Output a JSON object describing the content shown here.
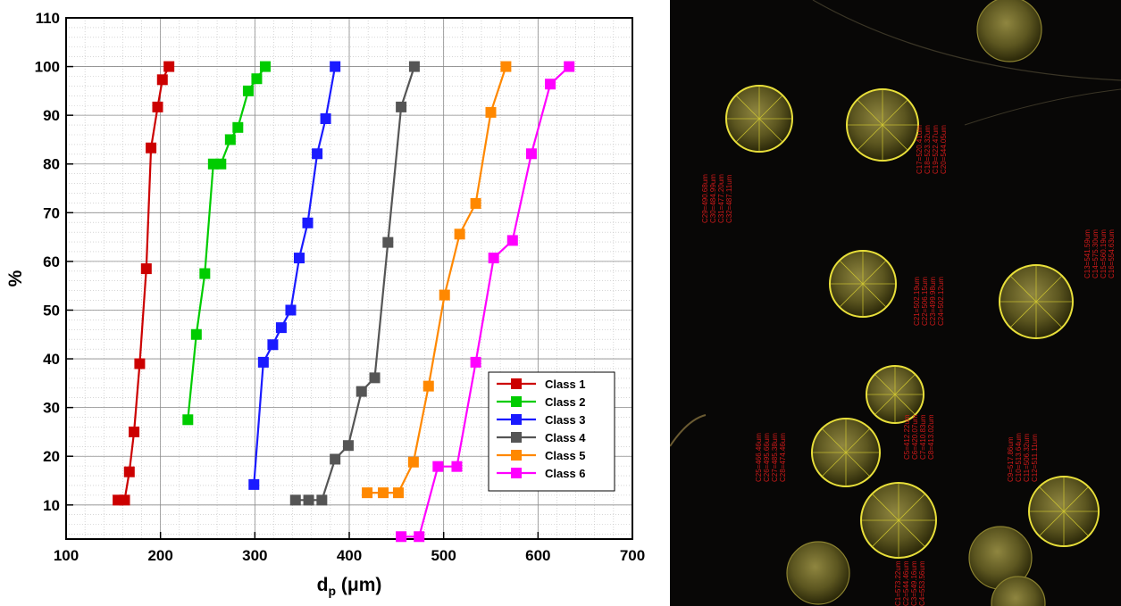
{
  "chart_data": {
    "type": "line",
    "title": "",
    "xlabel": "d",
    "xlabel_sub": "p",
    "xlabel_unit": " (μm)",
    "ylabel": "%",
    "xlim": [
      100,
      700
    ],
    "ylim": [
      3,
      110
    ],
    "x_ticks": [
      100,
      200,
      300,
      400,
      500,
      600,
      700
    ],
    "y_ticks": [
      10,
      20,
      30,
      40,
      50,
      60,
      70,
      80,
      90,
      100,
      110
    ],
    "grid": true,
    "legend_position": "bottom-right",
    "series": [
      {
        "name": "Class 1",
        "color": "#cc0000",
        "x": [
          155,
          162,
          167,
          172,
          178,
          185,
          190,
          197,
          202,
          209
        ],
        "y": [
          11,
          11,
          16.8,
          25,
          39,
          58.5,
          83.3,
          91.7,
          97.3,
          100
        ]
      },
      {
        "name": "Class 2",
        "color": "#00cc00",
        "x": [
          229,
          238,
          247,
          256,
          264,
          274,
          282,
          293,
          302,
          311
        ],
        "y": [
          27.5,
          45,
          57.5,
          80,
          80,
          85,
          87.5,
          95,
          97.5,
          100
        ]
      },
      {
        "name": "Class 3",
        "color": "#1a1aff",
        "x": [
          299,
          309,
          319,
          328,
          338,
          347,
          356,
          366,
          375,
          385
        ],
        "y": [
          14.2,
          39.3,
          42.9,
          46.4,
          50,
          60.7,
          67.9,
          82.1,
          89.3,
          100
        ]
      },
      {
        "name": "Class 4",
        "color": "#555555",
        "x": [
          343,
          357,
          371,
          385,
          399,
          413,
          427,
          441,
          455,
          469
        ],
        "y": [
          11,
          11,
          11,
          19.4,
          22.2,
          33.3,
          36.1,
          63.9,
          91.7,
          100
        ]
      },
      {
        "name": "Class 5",
        "color": "#ff8800",
        "x": [
          419,
          436,
          452,
          468,
          484,
          501,
          517,
          534,
          550,
          566
        ],
        "y": [
          12.5,
          12.5,
          12.5,
          18.8,
          34.4,
          53.1,
          65.6,
          71.9,
          90.6,
          100
        ]
      },
      {
        "name": "Class 6",
        "color": "#ff00ff",
        "x": [
          455,
          474,
          494,
          514,
          534,
          553,
          573,
          593,
          613,
          633
        ],
        "y": [
          3.5,
          3.5,
          17.9,
          17.9,
          39.3,
          60.7,
          64.3,
          82.1,
          96.4,
          100
        ]
      }
    ]
  },
  "photo": {
    "annotations": [
      {
        "lines": [
          "C29=490.68um",
          "C30=484.99um",
          "C31=477.20um",
          "C32=487.11um"
        ]
      },
      {
        "lines": [
          "C17=520.41um",
          "C18=523.32um",
          "C19=522.47um",
          "C20=544.05um"
        ]
      },
      {
        "lines": [
          "C13=541.59um",
          "C14=575.30um",
          "C15=560.19um",
          "C16=554.63um"
        ]
      },
      {
        "lines": [
          "C21=502.19um",
          "C22=506.15um",
          "C23=499.98um",
          "C24=502.12um"
        ]
      },
      {
        "lines": [
          "C25=466.46um",
          "C26=495.66um",
          "C27=485.38um",
          "C28=474.46um"
        ]
      },
      {
        "lines": [
          "C5=412.22um",
          "C6=420.07um",
          "C7=410.83um",
          "C8=413.02um"
        ]
      },
      {
        "lines": [
          "C9=517.86um",
          "C10=513.64um",
          "C11=506.32um",
          "C12=511.11um"
        ]
      },
      {
        "lines": [
          "C1=573.22um",
          "C2=544.46um",
          "C3=549.16um",
          "C4=553.56um"
        ]
      }
    ]
  }
}
